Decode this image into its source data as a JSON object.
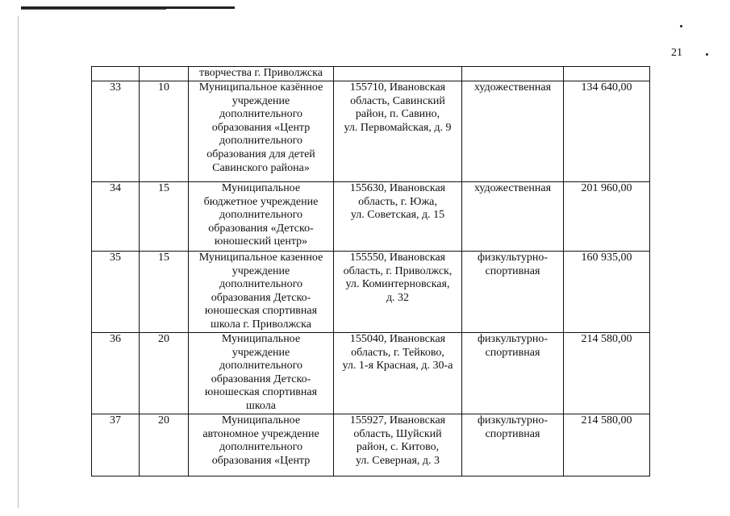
{
  "page_number": "21",
  "table": {
    "rows": [
      {
        "num": "",
        "count": "",
        "name": "творчества г. Приволжска",
        "address": "",
        "type": "",
        "amount": ""
      },
      {
        "num": "33",
        "count": "10",
        "name": "Муниципальное казённое\nучреждение\nдополнительного\nобразования «Центр\nдополнительного\nобразования для детей\nСавинского района»",
        "address": "155710, Ивановская\nобласть, Савинский\nрайон, п. Савино,\nул. Первомайская, д. 9",
        "type": "художественная",
        "amount": "134 640,00"
      },
      {
        "num": "34",
        "count": "15",
        "name": "Муниципальное\nбюджетное учреждение\nдополнительного\nобразования «Детско-\nюношеский центр»",
        "address": "155630, Ивановская\nобласть, г. Южа,\nул. Советская, д. 15",
        "type": "художественная",
        "amount": "201 960,00"
      },
      {
        "num": "35",
        "count": "15",
        "name": "Муниципальное казенное\nучреждение\nдополнительного\nобразования Детско-\nюношеская спортивная\nшкола г. Приволжска",
        "address": "155550, Ивановская\nобласть, г. Приволжск,\nул. Коминтерновская,\nд. 32",
        "type": "физкультурно-\nспортивная",
        "amount": "160 935,00"
      },
      {
        "num": "36",
        "count": "20",
        "name": "Муниципальное\nучреждение\nдополнительного\nобразования Детско-\nюношеская спортивная\nшкола",
        "address": "155040, Ивановская\nобласть, г. Тейково,\nул. 1-я Красная, д. 30-а",
        "type": "физкультурно-\nспортивная",
        "amount": "214 580,00"
      },
      {
        "num": "37",
        "count": "20",
        "name": "Муниципальное\nавтономное учреждение\nдополнительного\nобразования «Центр",
        "address": "155927, Ивановская\nобласть, Шуйский\nрайон, с. Китово,\nул. Северная, д. 3",
        "type": "физкультурно-\nспортивная",
        "amount": "214 580,00"
      }
    ]
  }
}
